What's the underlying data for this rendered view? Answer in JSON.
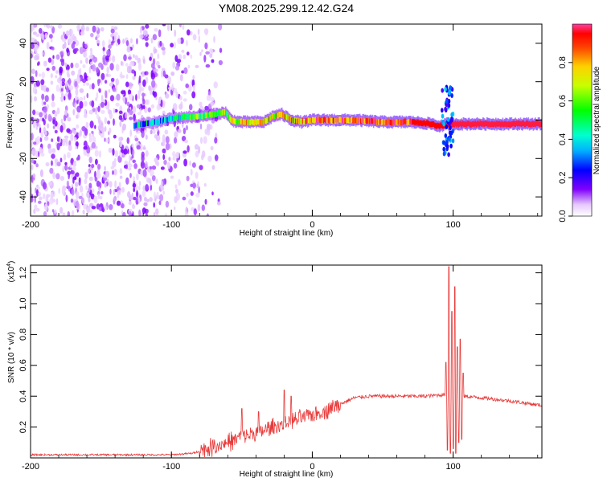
{
  "title": "YM08.2025.299.12.42.G24",
  "chart_data": [
    {
      "type": "heatmap",
      "name": "spectrogram",
      "xlabel": "Height of straight line (km)",
      "ylabel": "Frequency (Hz)",
      "xlim": [
        -200,
        163
      ],
      "ylim": [
        -50,
        50
      ],
      "xticks": [
        -200,
        -100,
        0,
        100
      ],
      "xtick_labels": [
        "-200",
        "-100",
        "0",
        "100"
      ],
      "yticks": [
        -40,
        -20,
        0,
        20,
        40
      ],
      "ytick_labels": [
        "-40",
        "-20",
        "0",
        "20",
        "40"
      ],
      "colorbar": {
        "label": "Normalized spectral amplitude",
        "range": [
          0,
          1
        ],
        "ticks": [
          0.0,
          0.2,
          0.4,
          0.6,
          0.8
        ],
        "tick_labels": [
          "0.0",
          "0.2",
          "0.4",
          "0.6",
          "0.8"
        ]
      },
      "ridge": {
        "x": [
          -127,
          -120,
          -110,
          -100,
          -90,
          -80,
          -70,
          -62,
          -58,
          -52,
          -45,
          -35,
          -28,
          -22,
          -15,
          -8,
          0,
          10,
          20,
          30,
          50,
          70,
          85,
          88,
          92,
          95,
          100,
          120,
          163
        ],
        "freq": [
          -3,
          -2,
          -1,
          1,
          1.5,
          2,
          3,
          4,
          0,
          -1,
          -1,
          -1,
          2,
          3,
          0,
          -1,
          0,
          0,
          0,
          0,
          -1,
          -1,
          -2,
          -3,
          -3,
          -2,
          -2,
          -2,
          -2
        ],
        "amplitude": [
          0.3,
          0.35,
          0.4,
          0.45,
          0.5,
          0.55,
          0.6,
          0.6,
          0.65,
          0.7,
          0.72,
          0.75,
          0.7,
          0.75,
          0.78,
          0.8,
          0.82,
          0.85,
          0.88,
          0.9,
          0.92,
          0.95,
          0.95,
          0.95,
          0.95,
          0.95,
          0.97,
          0.97,
          0.97
        ]
      },
      "noise_region_x": [
        -200,
        -80
      ]
    },
    {
      "type": "line",
      "name": "snr",
      "xlabel": "Height of straight line (km)",
      "ylabel": "SNR (10 * v/v)",
      "y_multiplier": "(x10^4)",
      "y_multiplier_base": "(x10",
      "y_multiplier_exp": "4",
      "y_multiplier_close": ")",
      "xlim": [
        -200,
        163
      ],
      "ylim": [
        0,
        1.25
      ],
      "xticks": [
        -200,
        -100,
        0,
        100
      ],
      "xtick_labels": [
        "-200",
        "-100",
        "0",
        "100"
      ],
      "yticks": [
        0.2,
        0.4,
        0.6,
        0.8,
        1.0,
        1.2
      ],
      "ytick_labels": [
        "0.2",
        "0.4",
        "0.6",
        "0.8",
        "1.0",
        "1.2"
      ],
      "color": "#e83a3a",
      "envelope": {
        "x": [
          -200,
          -150,
          -100,
          -85,
          -75,
          -60,
          -50,
          -40,
          -30,
          -20,
          -10,
          0,
          10,
          20,
          30,
          40,
          60,
          80,
          93,
          100,
          108,
          120,
          140,
          163
        ],
        "y": [
          0.02,
          0.02,
          0.02,
          0.03,
          0.06,
          0.1,
          0.14,
          0.16,
          0.19,
          0.22,
          0.25,
          0.28,
          0.31,
          0.35,
          0.39,
          0.4,
          0.4,
          0.4,
          0.41,
          0.4,
          0.4,
          0.39,
          0.37,
          0.34
        ]
      },
      "spikes": [
        {
          "x": -50,
          "y": 0.32
        },
        {
          "x": -38,
          "y": 0.3
        },
        {
          "x": -20,
          "y": 0.44
        },
        {
          "x": -15,
          "y": 0.4
        },
        {
          "x": 95,
          "y": 0.62
        },
        {
          "x": 97,
          "y": 1.24
        },
        {
          "x": 99,
          "y": 0.95
        },
        {
          "x": 101,
          "y": 1.11
        },
        {
          "x": 103,
          "y": 0.72
        },
        {
          "x": 105,
          "y": 0.77
        },
        {
          "x": 107,
          "y": 0.55
        }
      ],
      "dips": [
        {
          "x": 96,
          "y": 0.05
        },
        {
          "x": 98,
          "y": 0.03
        },
        {
          "x": 100,
          "y": 0.06
        },
        {
          "x": 102,
          "y": 0.03
        },
        {
          "x": 104,
          "y": 0.1
        },
        {
          "x": 106,
          "y": 0.12
        }
      ]
    }
  ]
}
